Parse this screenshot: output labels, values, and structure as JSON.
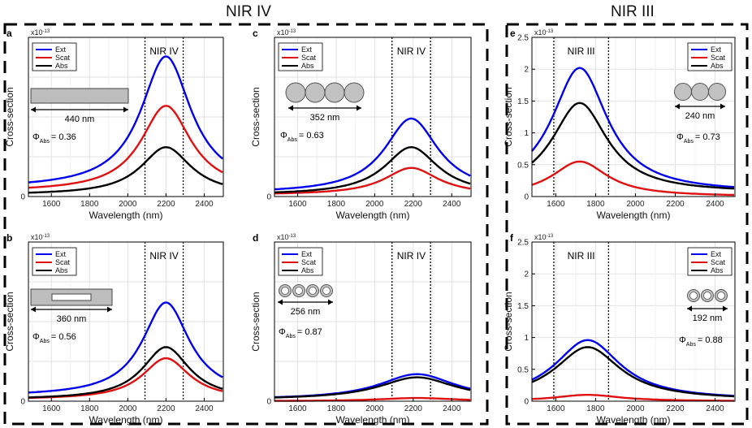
{
  "headers": {
    "left": "NIR IV",
    "right": "NIR III"
  },
  "curve_colors": {
    "Ext": "#0000ee",
    "Scat": "#e01010",
    "Abs": "#000000"
  },
  "chart_data": [
    {
      "type": "line",
      "panel": "a",
      "xlim": [
        1480,
        2500
      ],
      "ylim": [
        0,
        1
      ],
      "yticks": [],
      "xticks": [
        1600,
        1800,
        2000,
        2200,
        2400
      ],
      "multiplier": "x10",
      "multiplier_exp": "-13",
      "xlabel": "Wavelength (nm)",
      "ylabel": "Cross-section",
      "band": [
        2090,
        2290
      ],
      "band_label": "NIR IV",
      "legend": [
        "Ext",
        "Scat",
        "Abs"
      ],
      "series": [
        {
          "name": "Ext",
          "base": 0.05,
          "peak": 0.88,
          "center": 2200,
          "width": 160
        },
        {
          "name": "Scat",
          "base": 0.03,
          "peak": 0.57,
          "center": 2200,
          "width": 160
        },
        {
          "name": "Abs",
          "base": 0.01,
          "peak": 0.31,
          "center": 2200,
          "width": 160
        }
      ],
      "inset": {
        "kind": "rod",
        "size": "440 nm",
        "phi_value": "= 0.36"
      }
    },
    {
      "type": "line",
      "panel": "b",
      "xlim": [
        1480,
        2500
      ],
      "ylim": [
        0,
        1
      ],
      "yticks": [],
      "xticks": [
        1600,
        1800,
        2000,
        2200,
        2400
      ],
      "multiplier": "x10",
      "multiplier_exp": "-13",
      "xlabel": "Wavelength (nm)",
      "ylabel": "Cross-section",
      "band": [
        2090,
        2290
      ],
      "band_label": "NIR IV",
      "legend": [
        "Ext",
        "Scat",
        "Abs"
      ],
      "series": [
        {
          "name": "Ext",
          "base": 0.03,
          "peak": 0.62,
          "center": 2200,
          "width": 150
        },
        {
          "name": "Scat",
          "base": 0.01,
          "peak": 0.27,
          "center": 2200,
          "width": 150
        },
        {
          "name": "Abs",
          "base": 0.01,
          "peak": 0.34,
          "center": 2200,
          "width": 150
        }
      ],
      "inset": {
        "kind": "hollowrod",
        "size": "360 nm",
        "phi_value": "= 0.56"
      }
    },
    {
      "type": "line",
      "panel": "c",
      "xlim": [
        1480,
        2500
      ],
      "ylim": [
        0,
        1
      ],
      "yticks": [],
      "xticks": [
        1600,
        1800,
        2000,
        2200,
        2400
      ],
      "multiplier": "x10",
      "multiplier_exp": "-13",
      "xlabel": "Wavelength (nm)",
      "ylabel": "Cross-section",
      "band": [
        2090,
        2290
      ],
      "band_label": "NIR IV",
      "legend": [
        "Ext",
        "Scat",
        "Abs"
      ],
      "series": [
        {
          "name": "Ext",
          "base": 0.02,
          "peak": 0.49,
          "center": 2190,
          "width": 170
        },
        {
          "name": "Scat",
          "base": 0.01,
          "peak": 0.18,
          "center": 2190,
          "width": 170
        },
        {
          "name": "Abs",
          "base": 0.01,
          "peak": 0.31,
          "center": 2190,
          "width": 170
        }
      ],
      "inset": {
        "kind": "spheres",
        "size": "352 nm",
        "phi_value": "= 0.63"
      }
    },
    {
      "type": "line",
      "panel": "d",
      "xlim": [
        1480,
        2500
      ],
      "ylim": [
        0,
        1
      ],
      "yticks": [],
      "xticks": [
        1600,
        1800,
        2000,
        2200,
        2400
      ],
      "multiplier": "x10",
      "multiplier_exp": "-13",
      "xlabel": "Wavelength (nm)",
      "ylabel": "Cross-section",
      "band": [
        2090,
        2290
      ],
      "band_label": "NIR IV",
      "legend": [
        "Ext",
        "Scat",
        "Abs"
      ],
      "series": [
        {
          "name": "Ext",
          "base": 0.01,
          "peak": 0.17,
          "center": 2220,
          "width": 240
        },
        {
          "name": "Scat",
          "base": 0.0,
          "peak": 0.02,
          "center": 2220,
          "width": 240
        },
        {
          "name": "Abs",
          "base": 0.01,
          "peak": 0.15,
          "center": 2220,
          "width": 240
        }
      ],
      "inset": {
        "kind": "rings",
        "size": "256 nm",
        "phi_value": "= 0.87"
      }
    },
    {
      "type": "line",
      "panel": "e",
      "xlim": [
        1480,
        2500
      ],
      "ylim": [
        0,
        2.5
      ],
      "yticks": [
        "0",
        "0.5",
        "1",
        "1.5",
        "2",
        "2.5"
      ],
      "xticks": [
        1600,
        1800,
        2000,
        2200,
        2400
      ],
      "multiplier": "x10",
      "multiplier_exp": "-13",
      "xlabel": "Wavelength (nm)",
      "ylabel": "Cross-section",
      "band": [
        1590,
        1865
      ],
      "band_label": "NIR III",
      "legend": [
        "Ext",
        "Scat",
        "Abs"
      ],
      "series": [
        {
          "name": "Ext",
          "base": 0.06,
          "peak": 2.02,
          "center": 1720,
          "width": 170
        },
        {
          "name": "Scat",
          "base": 0.0,
          "peak": 0.55,
          "center": 1720,
          "width": 170
        },
        {
          "name": "Abs",
          "base": 0.06,
          "peak": 1.47,
          "center": 1720,
          "width": 170
        }
      ],
      "inset": {
        "kind": "spheres",
        "size": "240 nm",
        "phi_value": "= 0.73"
      }
    },
    {
      "type": "line",
      "panel": "f",
      "xlim": [
        1480,
        2500
      ],
      "ylim": [
        0,
        2.5
      ],
      "yticks": [
        "0",
        "0.5",
        "1",
        "1.5",
        "2",
        "2.5"
      ],
      "xticks": [
        1600,
        1800,
        2000,
        2200,
        2400
      ],
      "multiplier": "x10",
      "multiplier_exp": "-13",
      "xlabel": "Wavelength (nm)",
      "ylabel": "Cross-section",
      "band": [
        1590,
        1865
      ],
      "band_label": "NIR III",
      "legend": [
        "Ext",
        "Scat",
        "Abs"
      ],
      "series": [
        {
          "name": "Ext",
          "base": 0.02,
          "peak": 0.96,
          "center": 1760,
          "width": 200
        },
        {
          "name": "Scat",
          "base": 0.0,
          "peak": 0.1,
          "center": 1760,
          "width": 200
        },
        {
          "name": "Abs",
          "base": 0.02,
          "peak": 0.85,
          "center": 1760,
          "width": 200
        }
      ],
      "inset": {
        "kind": "rings",
        "size": "192 nm",
        "phi_value": "= 0.88"
      }
    }
  ]
}
